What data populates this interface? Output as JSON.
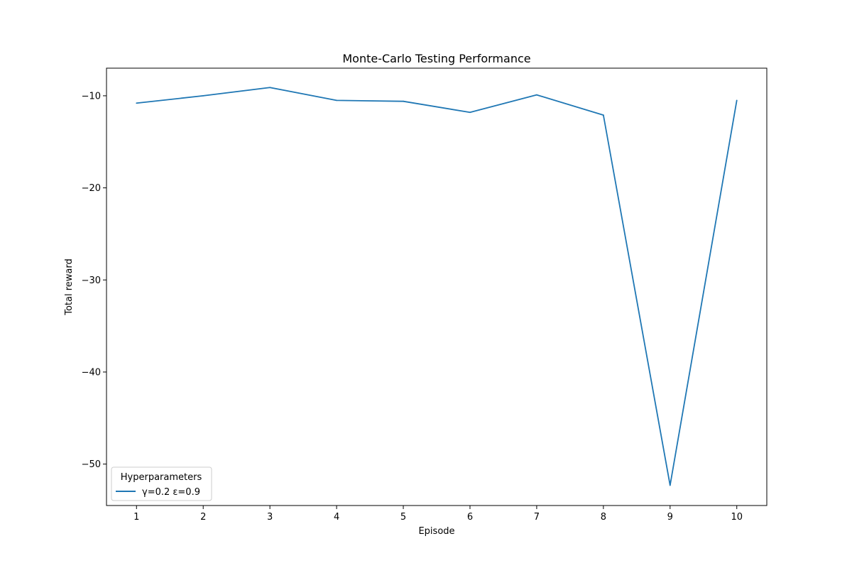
{
  "chart_data": {
    "type": "line",
    "title": "Monte-Carlo Testing Performance",
    "xlabel": "Episode",
    "ylabel": "Total reward",
    "x": [
      1,
      2,
      3,
      4,
      5,
      6,
      7,
      8,
      9,
      10
    ],
    "xticks": [
      1,
      2,
      3,
      4,
      5,
      6,
      7,
      8,
      9,
      10
    ],
    "xtick_labels": [
      "1",
      "2",
      "3",
      "4",
      "5",
      "6",
      "7",
      "8",
      "9",
      "10"
    ],
    "yticks": [
      -10,
      -20,
      -30,
      -40,
      -50
    ],
    "ytick_labels": [
      "−10",
      "−20",
      "−30",
      "−40",
      "−50"
    ],
    "xlim": [
      0.55,
      10.45
    ],
    "ylim": [
      -54.5,
      -7.0
    ],
    "grid": false,
    "series": [
      {
        "name": "γ=0.2 ε=0.9",
        "color": "#1f77b4",
        "values": [
          -10.8,
          -10.0,
          -9.1,
          -10.5,
          -10.6,
          -11.8,
          -9.9,
          -12.1,
          -52.3,
          -10.5
        ]
      }
    ],
    "legend": {
      "title": "Hyperparameters",
      "placement": "lower-left"
    }
  }
}
